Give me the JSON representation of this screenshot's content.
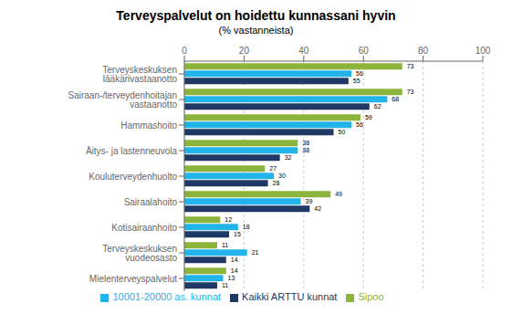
{
  "chart_data": {
    "type": "bar",
    "orientation": "horizontal",
    "title": "Terveyspalvelut on hoidettu kunnassani hyvin",
    "subtitle": "(% vastanneista)",
    "categories": [
      "Terveyskeskuksen lääkärivastaanotto",
      "Sairaan-/terveydenhoitajan vastaanotto",
      "Hammashoito",
      "Äitys- ja lastenneuvola",
      "Kouluterveydenhuolto",
      "Sairaalahoito",
      "Kotisairaanhoito",
      "Terveyskeskuksen vuodeosasto",
      "Mielenterveyspalvelut"
    ],
    "series": [
      {
        "name": "Sipoo",
        "color": "#8cb43a",
        "values": [
          73,
          73,
          59,
          38,
          27,
          49,
          12,
          11,
          14
        ]
      },
      {
        "name": "10001-20000 as. kunnat",
        "color": "#22b4e8",
        "values": [
          56,
          68,
          56,
          38,
          30,
          39,
          18,
          21,
          13
        ]
      },
      {
        "name": "Kaikki ARTTU kunnat",
        "color": "#1f3864",
        "values": [
          55,
          62,
          50,
          32,
          28,
          42,
          15,
          14,
          11
        ]
      }
    ],
    "xlim": [
      0,
      100
    ],
    "xticks": [
      0,
      20,
      40,
      60,
      80,
      100
    ],
    "grid": true,
    "data_labels": true,
    "legend": "bottom"
  }
}
